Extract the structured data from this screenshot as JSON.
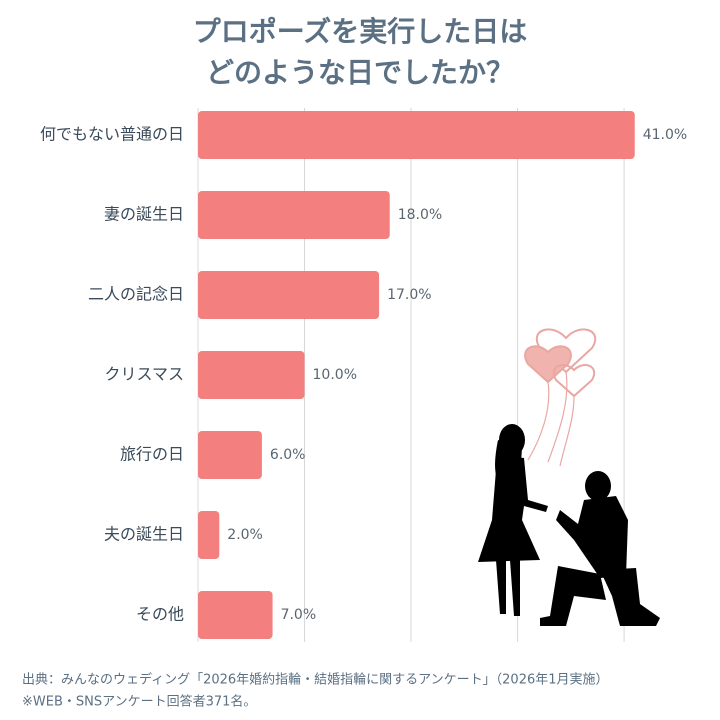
{
  "chart_data": {
    "type": "barh",
    "title_lines": [
      "プロポーズを実行した日は",
      "どのような日でしたか？"
    ],
    "categories": [
      "何でもない普通の日",
      "妻の誕生日",
      "二人の記念日",
      "クリスマス",
      "旅行の日",
      "夫の誕生日",
      "その他"
    ],
    "values": [
      41,
      18,
      17,
      10,
      6,
      2,
      7
    ],
    "value_labels": [
      "41.0%",
      "18.0%",
      "17.0%",
      "10.0%",
      "6.0%",
      "2.0%",
      "7.0%"
    ],
    "color": "#f47f7f",
    "xlim": [
      0,
      46
    ],
    "xticks": [
      0,
      10,
      20,
      30,
      40
    ],
    "grid": true,
    "notes": [
      "出典：みんなのウェディング「2026年婚約指輪・結婚指輪に関するアンケート」（2026年1月実施）",
      "※WEB・SNSアンケート回答者371名。"
    ]
  }
}
